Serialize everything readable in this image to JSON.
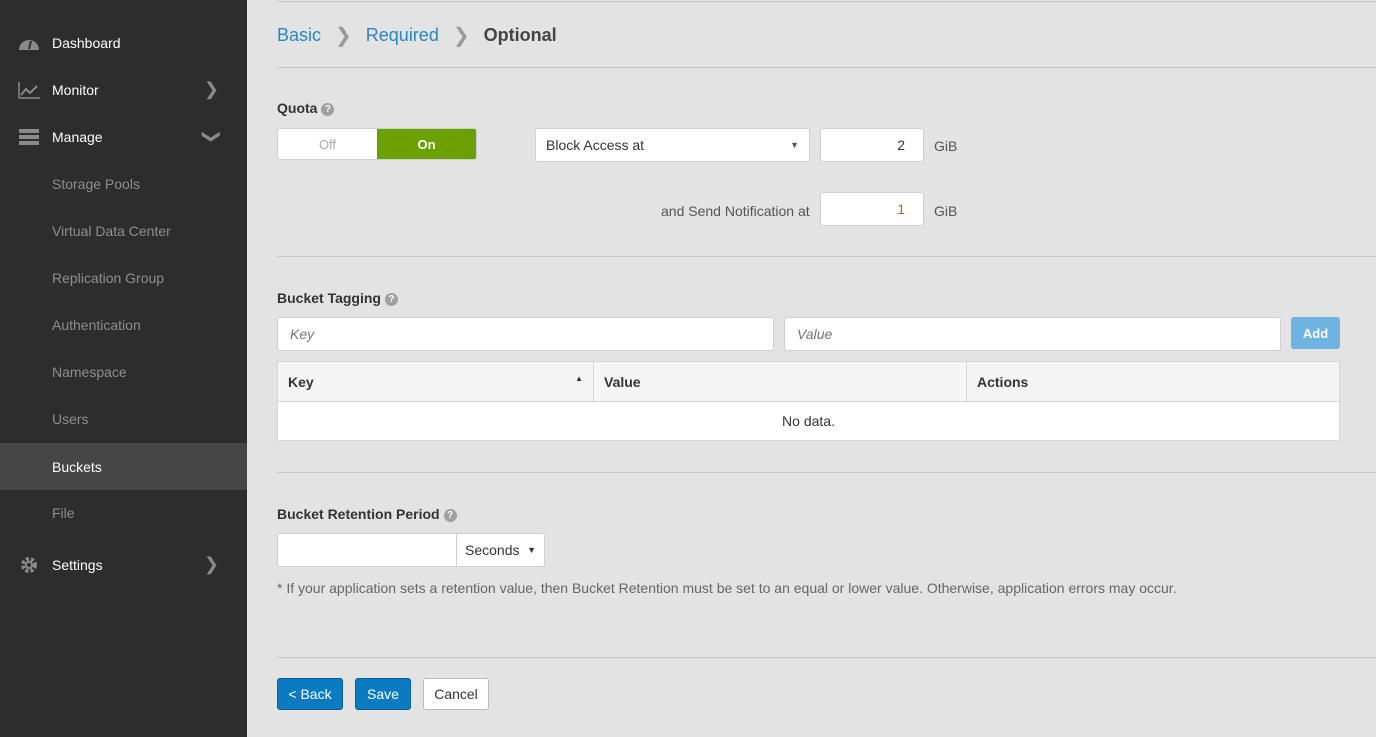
{
  "sidebar": {
    "items": [
      {
        "label": "Dashboard",
        "icon": "dashboard-icon"
      },
      {
        "label": "Monitor",
        "icon": "chart-line-icon"
      },
      {
        "label": "Manage",
        "icon": "server-icon"
      },
      {
        "label": "Storage Pools"
      },
      {
        "label": "Virtual Data Center"
      },
      {
        "label": "Replication Group"
      },
      {
        "label": "Authentication"
      },
      {
        "label": "Namespace"
      },
      {
        "label": "Users"
      },
      {
        "label": "Buckets"
      },
      {
        "label": "File"
      },
      {
        "label": "Settings",
        "icon": "gear-icon"
      }
    ],
    "active": "Buckets"
  },
  "breadcrumb": {
    "step1": "Basic",
    "step2": "Required",
    "step3": "Optional"
  },
  "quota": {
    "title": "Quota",
    "off": "Off",
    "on": "On",
    "state": "On",
    "mode": "Block Access at",
    "block_value": "2",
    "unit": "GiB",
    "notify_label": "and Send Notification at",
    "notify_value": "1"
  },
  "tagging": {
    "title": "Bucket Tagging",
    "key_placeholder": "Key",
    "value_placeholder": "Value",
    "add": "Add",
    "columns": [
      "Key",
      "Value",
      "Actions"
    ],
    "empty": "No data."
  },
  "retention": {
    "title": "Bucket Retention Period",
    "value": "",
    "unit": "Seconds",
    "note": "* If your application sets a retention value, then Bucket Retention must be set to an equal or lower value. Otherwise, application errors may occur."
  },
  "footer": {
    "back": "< Back",
    "save": "Save",
    "cancel": "Cancel"
  },
  "colors": {
    "accent": "#0a7bc0",
    "on": "#6aa100",
    "sidebar": "#2d2d2d"
  }
}
